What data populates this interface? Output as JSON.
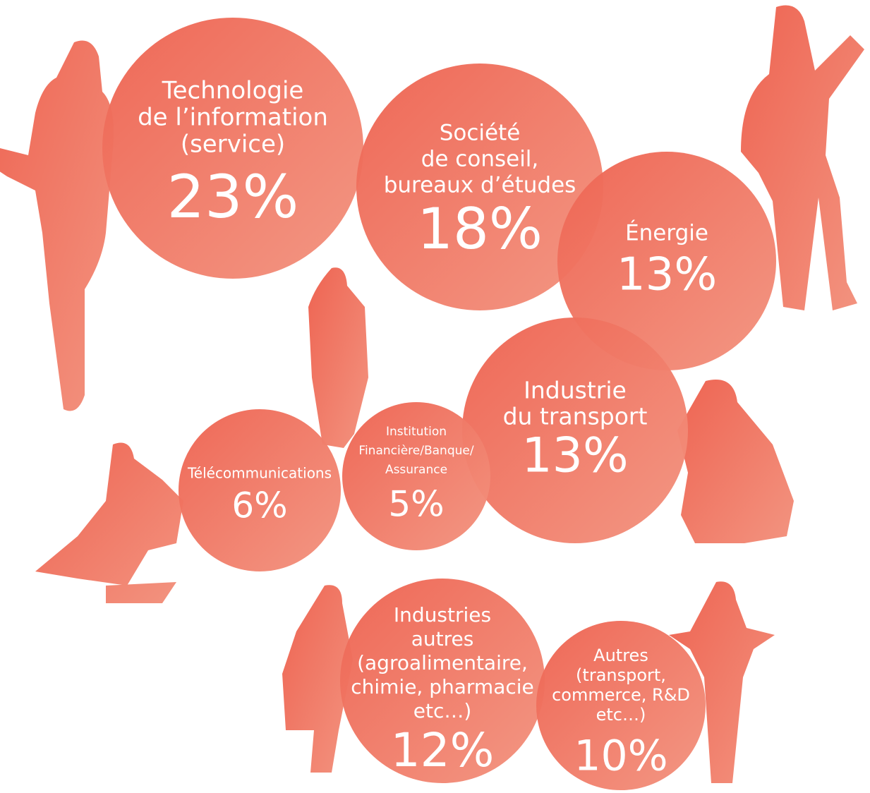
{
  "bubbles": [
    {
      "lines": [
        "Technologie",
        "de l’information",
        "(service)"
      ],
      "value": "23%"
    },
    {
      "lines": [
        "Société",
        "de conseil,",
        "bureaux d’études"
      ],
      "value": "18%"
    },
    {
      "lines": [
        "Énergie"
      ],
      "value": "13%"
    },
    {
      "lines": [
        "Industrie",
        "du transport"
      ],
      "value": "13%"
    },
    {
      "lines": [
        "Télécommunications"
      ],
      "value": "6%"
    },
    {
      "lines": [
        "Institution",
        "Financière/Banque/",
        "Assurance"
      ],
      "value": "5%"
    },
    {
      "lines": [
        "Industries",
        "autres",
        "(agroalimentaire,",
        "chimie, pharmacie",
        "etc…)"
      ],
      "value": "12%"
    },
    {
      "lines": [
        "Autres",
        "(transport,",
        "commerce, R&D",
        "etc…)"
      ],
      "value": "10%"
    }
  ]
}
